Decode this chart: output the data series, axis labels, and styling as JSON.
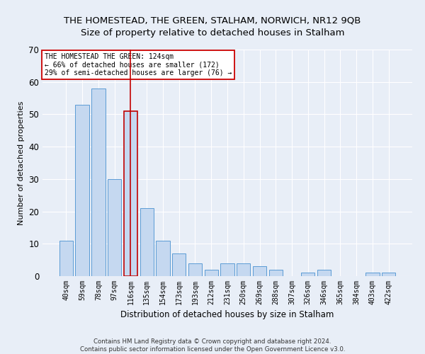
{
  "title": "THE HOMESTEAD, THE GREEN, STALHAM, NORWICH, NR12 9QB",
  "subtitle": "Size of property relative to detached houses in Stalham",
  "xlabel": "Distribution of detached houses by size in Stalham",
  "ylabel": "Number of detached properties",
  "footer_line1": "Contains HM Land Registry data © Crown copyright and database right 2024.",
  "footer_line2": "Contains public sector information licensed under the Open Government Licence v3.0.",
  "categories": [
    "40sqm",
    "59sqm",
    "78sqm",
    "97sqm",
    "116sqm",
    "135sqm",
    "154sqm",
    "173sqm",
    "193sqm",
    "212sqm",
    "231sqm",
    "250sqm",
    "269sqm",
    "288sqm",
    "307sqm",
    "326sqm",
    "346sqm",
    "365sqm",
    "384sqm",
    "403sqm",
    "422sqm"
  ],
  "values": [
    11,
    53,
    58,
    30,
    51,
    21,
    11,
    7,
    4,
    2,
    4,
    4,
    3,
    2,
    0,
    1,
    2,
    0,
    0,
    1,
    1
  ],
  "bar_color": "#c5d8f0",
  "bar_edge_color": "#5b9bd5",
  "highlight_bar_index": 4,
  "highlight_color": "#c5d8f0",
  "highlight_edge_color": "#c00000",
  "vline_color": "#c00000",
  "ylim": [
    0,
    70
  ],
  "yticks": [
    0,
    10,
    20,
    30,
    40,
    50,
    60,
    70
  ],
  "annotation_line1": "THE HOMESTEAD THE GREEN: 124sqm",
  "annotation_line2": "← 66% of detached houses are smaller (172)",
  "annotation_line3": "29% of semi-detached houses are larger (76) →",
  "background_color": "#e8eef7",
  "grid_color": "#ffffff",
  "title_fontsize": 9.5,
  "subtitle_fontsize": 9.5,
  "bar_width": 0.85
}
